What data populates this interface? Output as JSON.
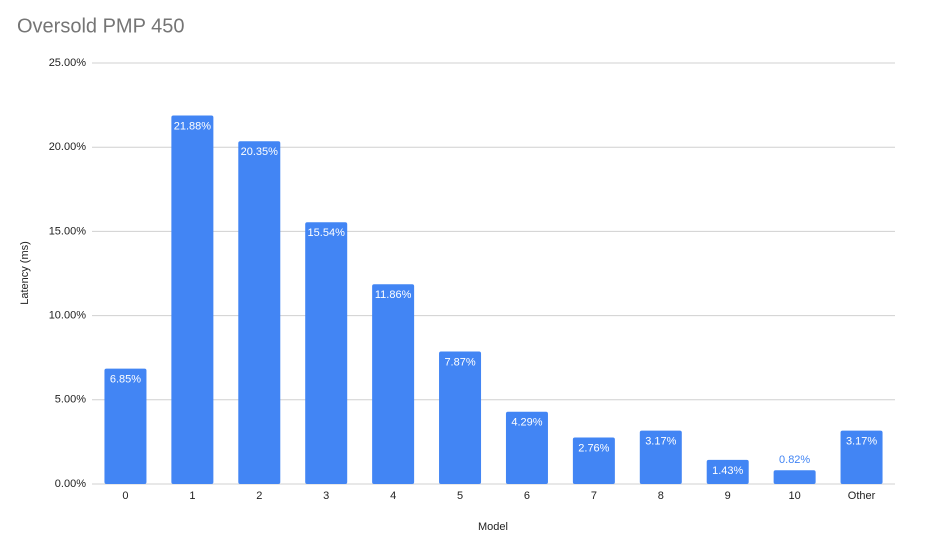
{
  "chart_data": {
    "type": "bar",
    "title": "Oversold PMP 450",
    "x_label": "Model",
    "y_label": "Latency (ms)",
    "categories": [
      "0",
      "1",
      "2",
      "3",
      "4",
      "5",
      "6",
      "7",
      "8",
      "9",
      "10",
      "Other"
    ],
    "values": [
      6.85,
      21.88,
      20.35,
      15.54,
      11.86,
      7.87,
      4.29,
      2.76,
      3.17,
      1.43,
      0.82,
      3.17
    ],
    "value_labels": [
      "6.85%",
      "21.88%",
      "20.35%",
      "15.54%",
      "11.86%",
      "7.87%",
      "4.29%",
      "2.76%",
      "3.17%",
      "1.43%",
      "0.82%",
      "3.17%"
    ],
    "color": "#4285f4",
    "ylim": [
      0,
      25
    ],
    "yticks": [
      {
        "value": 0,
        "label": "0.00%"
      },
      {
        "value": 5,
        "label": "5.00%"
      },
      {
        "value": 10,
        "label": "10.00%"
      },
      {
        "value": 15,
        "label": "15.00%"
      },
      {
        "value": 20,
        "label": "20.00%"
      },
      {
        "value": 25,
        "label": "25.00%"
      }
    ],
    "grid": true
  }
}
